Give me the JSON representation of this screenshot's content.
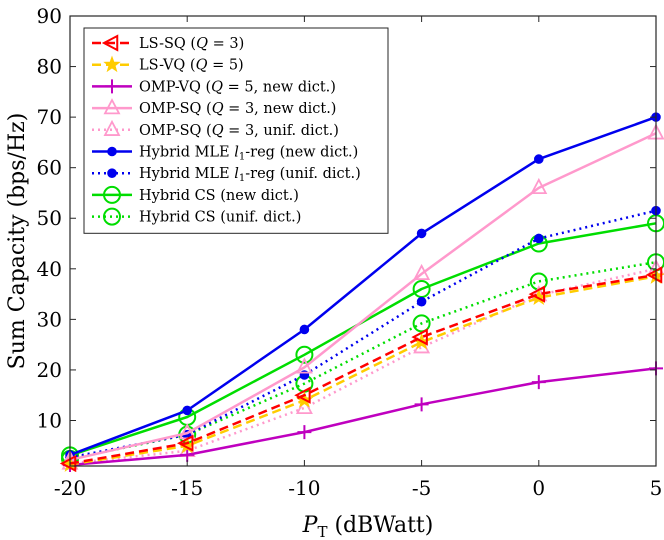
{
  "chart_data": {
    "type": "line",
    "title": "",
    "xlabel_main": "P",
    "xlabel_sub": "T",
    "xlabel_unit": " (dBWatt)",
    "ylabel": "Sum Capacity (bps/Hz)",
    "xlim": [
      -20,
      5
    ],
    "ylim": [
      1,
      90
    ],
    "x": [
      -20,
      -15,
      -10,
      -5,
      0,
      5
    ],
    "xticks": [
      -20,
      -15,
      -10,
      -5,
      0,
      5
    ],
    "xtick_labels": [
      "-20",
      "-15",
      "-10",
      "-5",
      "0",
      "5"
    ],
    "yticks": [
      10,
      20,
      30,
      40,
      50,
      60,
      70,
      80,
      90
    ],
    "ytick_labels": [
      "10",
      "20",
      "30",
      "40",
      "50",
      "60",
      "70",
      "80",
      "90"
    ],
    "grid": false,
    "legend_position": "top-left",
    "series": [
      {
        "name": "LS-SQ (Q = 3)",
        "legend_parts": [
          "LS-SQ (",
          "Q",
          " = 3)"
        ],
        "color": "#ff0000",
        "dash": "dashed",
        "marker": "triangle-left",
        "values": [
          1.5,
          5.5,
          15,
          26.5,
          35,
          38.8
        ]
      },
      {
        "name": "LS-VQ (Q = 5)",
        "legend_parts": [
          "LS-VQ (",
          "Q",
          " = 5)"
        ],
        "color": "#ffcc00",
        "dash": "dashed",
        "marker": "star",
        "values": [
          1.3,
          5,
          14,
          25.5,
          34.3,
          38.5
        ]
      },
      {
        "name": "OMP-VQ (Q = 5, new dict.)",
        "legend_parts": [
          "OMP-VQ (",
          "Q",
          " = 5, new dict.)"
        ],
        "color": "#bf00bf",
        "dash": "solid",
        "marker": "plus",
        "values": [
          1.2,
          3.2,
          7.7,
          13.2,
          17.6,
          20.3
        ]
      },
      {
        "name": "OMP-SQ (Q = 3, new dict.)",
        "legend_parts": [
          "OMP-SQ (",
          "Q",
          " = 3, new dict.)"
        ],
        "color": "#ff99cc",
        "dash": "solid",
        "marker": "triangle-up",
        "values": [
          2.2,
          7.5,
          20.5,
          39,
          56,
          66.8
        ]
      },
      {
        "name": "OMP-SQ (Q = 3, unif. dict.)",
        "legend_parts": [
          "OMP-SQ (",
          "Q",
          " = 3, unif. dict.)"
        ],
        "color": "#ff99cc",
        "dash": "dotted",
        "marker": "triangle-up",
        "values": [
          1.5,
          4,
          12.5,
          24.5,
          34.8,
          40
        ]
      },
      {
        "name": "Hybrid MLE l1-reg (new dict.)",
        "legend_parts": [
          "Hybrid MLE ",
          "l",
          "1",
          "-reg (new dict.)"
        ],
        "color": "#0000ee",
        "dash": "solid",
        "marker": "dot",
        "values": [
          3.2,
          12,
          28,
          47,
          61.7,
          70
        ]
      },
      {
        "name": "Hybrid MLE l1-reg (unif. dict.)",
        "legend_parts": [
          "Hybrid MLE ",
          "l",
          "1",
          "-reg (unif. dict.)"
        ],
        "color": "#0000ee",
        "dash": "dotted",
        "marker": "dot",
        "values": [
          2.7,
          7.2,
          19,
          33.5,
          46,
          51.5
        ]
      },
      {
        "name": "Hybrid CS (new dict.)",
        "legend_parts": [
          "Hybrid CS (new dict.)"
        ],
        "color": "#00dd00",
        "dash": "solid",
        "marker": "circle",
        "values": [
          3.1,
          10.7,
          23,
          36,
          45,
          49
        ]
      },
      {
        "name": "Hybrid CS (unif. dict.)",
        "legend_parts": [
          "Hybrid CS (unif. dict.)"
        ],
        "color": "#00dd00",
        "dash": "dotted",
        "marker": "circle",
        "values": [
          2.4,
          7.2,
          17.3,
          29.2,
          37.5,
          41.3
        ]
      }
    ]
  }
}
